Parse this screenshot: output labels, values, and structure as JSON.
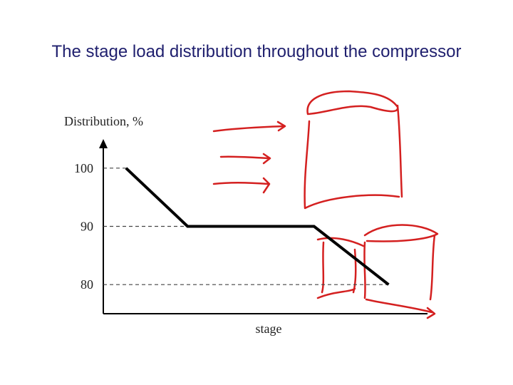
{
  "chart_data": {
    "type": "line",
    "title": "The stage load distribution throughout the compressor",
    "y_label": "Distribution, %",
    "x_label": "stage",
    "x": [
      0.7,
      2.6,
      6.5,
      8.8
    ],
    "series": [
      {
        "values": [
          100,
          90,
          90,
          80
        ],
        "color": "#000000"
      }
    ],
    "xlim": [
      0,
      10
    ],
    "ylim": [
      75,
      105
    ],
    "yticks": [
      100,
      90,
      80
    ],
    "grid": true
  }
}
